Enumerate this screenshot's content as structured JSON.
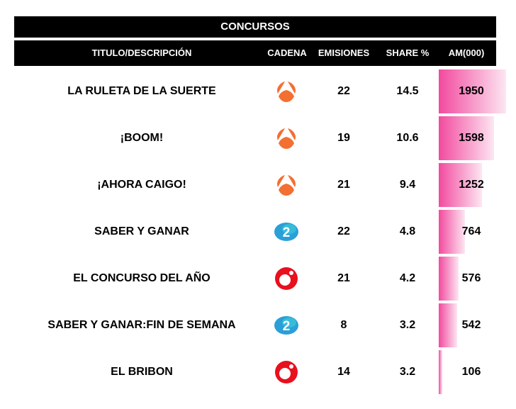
{
  "title": "CONCURSOS",
  "headers": {
    "titulo": "TITULO/DESCRIPCIÓN",
    "cadena": "CADENA",
    "emisiones": "EMISIONES",
    "share": "SHARE %",
    "am": "AM(000)"
  },
  "rows": [
    {
      "titulo": "LA RULETA DE LA SUERTE",
      "cadena": "antena3-logo",
      "emisiones": "22",
      "share": "14.5",
      "am": "1950"
    },
    {
      "titulo": "¡BOOM!",
      "cadena": "antena3-logo",
      "emisiones": "19",
      "share": "10.6",
      "am": "1598"
    },
    {
      "titulo": "¡AHORA CAIGO!",
      "cadena": "antena3-logo",
      "emisiones": "21",
      "share": "9.4",
      "am": "1252"
    },
    {
      "titulo": "SABER Y GANAR",
      "cadena": "la2-logo",
      "emisiones": "22",
      "share": "4.8",
      "am": "764"
    },
    {
      "titulo": "EL CONCURSO DEL AÑO",
      "cadena": "cuatro-logo",
      "emisiones": "21",
      "share": "4.2",
      "am": "576"
    },
    {
      "titulo": "SABER Y GANAR:FIN DE SEMANA",
      "cadena": "la2-logo",
      "emisiones": "8",
      "share": "3.2",
      "am": "542"
    },
    {
      "titulo": "EL BRIBON",
      "cadena": "cuatro-logo",
      "emisiones": "14",
      "share": "3.2",
      "am": "106"
    }
  ],
  "colors": {
    "bar": "#f24a9f",
    "antena3": "#f36f32",
    "la2": "#2a9fd8",
    "cuatro": "#e8101e"
  },
  "chart_data": {
    "type": "table",
    "title": "CONCURSOS",
    "columns": [
      "TITULO/DESCRIPCIÓN",
      "CADENA",
      "EMISIONES",
      "SHARE %",
      "AM(000)"
    ],
    "categories": [
      "LA RULETA DE LA SUERTE",
      "¡BOOM!",
      "¡AHORA CAIGO!",
      "SABER Y GANAR",
      "EL CONCURSO DEL AÑO",
      "SABER Y GANAR:FIN DE SEMANA",
      "EL BRIBON"
    ],
    "series": [
      {
        "name": "CADENA",
        "values": [
          "Antena 3",
          "Antena 3",
          "Antena 3",
          "La 2",
          "Cuatro",
          "La 2",
          "Cuatro"
        ]
      },
      {
        "name": "EMISIONES",
        "values": [
          22,
          19,
          21,
          22,
          21,
          8,
          14
        ]
      },
      {
        "name": "SHARE %",
        "values": [
          14.5,
          10.6,
          9.4,
          4.8,
          4.2,
          3.2,
          3.2
        ]
      },
      {
        "name": "AM(000)",
        "values": [
          1950,
          1598,
          1252,
          764,
          576,
          542,
          106
        ]
      }
    ]
  }
}
